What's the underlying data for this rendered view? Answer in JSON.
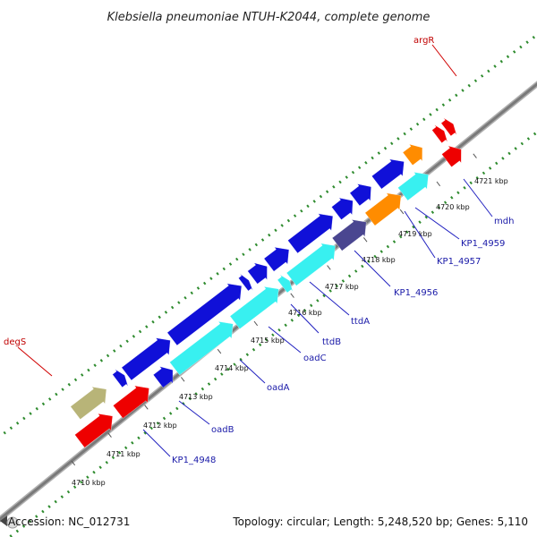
{
  "title": "Klebsiella pneumoniae NTUH-K2044, complete genome",
  "footer": {
    "accession": "Accession: NC_012731",
    "summary": "Topology: circular; Length: 5,248,520 bp; Genes: 5,110"
  },
  "colors": {
    "background": "#ffffff",
    "backbone": "#8a8a8a",
    "gc_marks": "#2e8b2e",
    "cds_forward": "#1010d8",
    "cds_reverse": "#38f0f0",
    "trna": "#ee0000",
    "operon": "#ff8c00",
    "misc": "#b8b478",
    "hypothetical": "#4a4690",
    "label_blue": "#1a1aa8",
    "label_red": "#c00000"
  },
  "tick_labels": [
    "4710 kbp",
    "4711 kbp",
    "4712 kbp",
    "4713 kbp",
    "4714 kbp",
    "4715 kbp",
    "4716 kbp",
    "4717 kbp",
    "4718 kbp",
    "4719 kbp",
    "4720 kbp",
    "4721 kbp"
  ],
  "gene_labels": [
    "KP1_4948",
    "oadB",
    "oadA",
    "oadC",
    "ttdB",
    "ttdA",
    "KP1_4956",
    "KP1_4957",
    "KP1_4959",
    "mdh",
    "degS",
    "argR"
  ],
  "features": [
    {
      "track": "forward",
      "start": 4710.7,
      "end": 4711.55,
      "color_key": "misc"
    },
    {
      "track": "forward",
      "start": 4711.85,
      "end": 4712.05,
      "color_key": "cds_forward"
    },
    {
      "track": "forward",
      "start": 4712.1,
      "end": 4713.3,
      "color_key": "cds_forward"
    },
    {
      "track": "forward",
      "start": 4713.35,
      "end": 4715.25,
      "color_key": "cds_forward"
    },
    {
      "track": "forward",
      "start": 4715.3,
      "end": 4715.45,
      "color_key": "cds_forward"
    },
    {
      "track": "forward",
      "start": 4715.55,
      "end": 4715.95,
      "color_key": "cds_forward"
    },
    {
      "track": "forward",
      "start": 4716.0,
      "end": 4716.55,
      "color_key": "cds_forward"
    },
    {
      "track": "forward",
      "start": 4716.65,
      "end": 4717.75,
      "color_key": "cds_forward"
    },
    {
      "track": "forward",
      "start": 4717.85,
      "end": 4718.3,
      "color_key": "cds_forward"
    },
    {
      "track": "forward",
      "start": 4718.35,
      "end": 4718.8,
      "color_key": "cds_forward"
    },
    {
      "track": "forward",
      "start": 4718.95,
      "end": 4719.7,
      "color_key": "cds_forward"
    },
    {
      "track": "forward",
      "start": 4719.8,
      "end": 4720.2,
      "color_key": "operon"
    },
    {
      "track": "forward",
      "start": 4720.6,
      "end": 4720.8,
      "color_key": "trna"
    },
    {
      "track": "forward",
      "start": 4720.85,
      "end": 4721.05,
      "color_key": "trna"
    },
    {
      "track": "reverse",
      "start": 4710.4,
      "end": 4711.3,
      "color_key": "trna"
    },
    {
      "track": "reverse",
      "start": 4711.45,
      "end": 4712.3,
      "color_key": "trna"
    },
    {
      "track": "reverse",
      "start": 4712.55,
      "end": 4712.95,
      "color_key": "cds_forward"
    },
    {
      "track": "reverse",
      "start": 4713.0,
      "end": 4714.6,
      "color_key": "cds_reverse"
    },
    {
      "track": "reverse",
      "start": 4714.65,
      "end": 4715.85,
      "color_key": "cds_reverse"
    },
    {
      "track": "reverse",
      "start": 4715.95,
      "end": 4716.15,
      "color_key": "cds_reverse"
    },
    {
      "track": "reverse",
      "start": 4716.2,
      "end": 4717.4,
      "color_key": "cds_reverse"
    },
    {
      "track": "reverse",
      "start": 4717.45,
      "end": 4718.25,
      "color_key": "hypothetical"
    },
    {
      "track": "reverse",
      "start": 4718.35,
      "end": 4719.2,
      "color_key": "operon"
    },
    {
      "track": "reverse",
      "start": 4719.25,
      "end": 4719.95,
      "color_key": "cds_reverse"
    },
    {
      "track": "reverse",
      "start": 4720.45,
      "end": 4720.85,
      "color_key": "trna"
    }
  ]
}
